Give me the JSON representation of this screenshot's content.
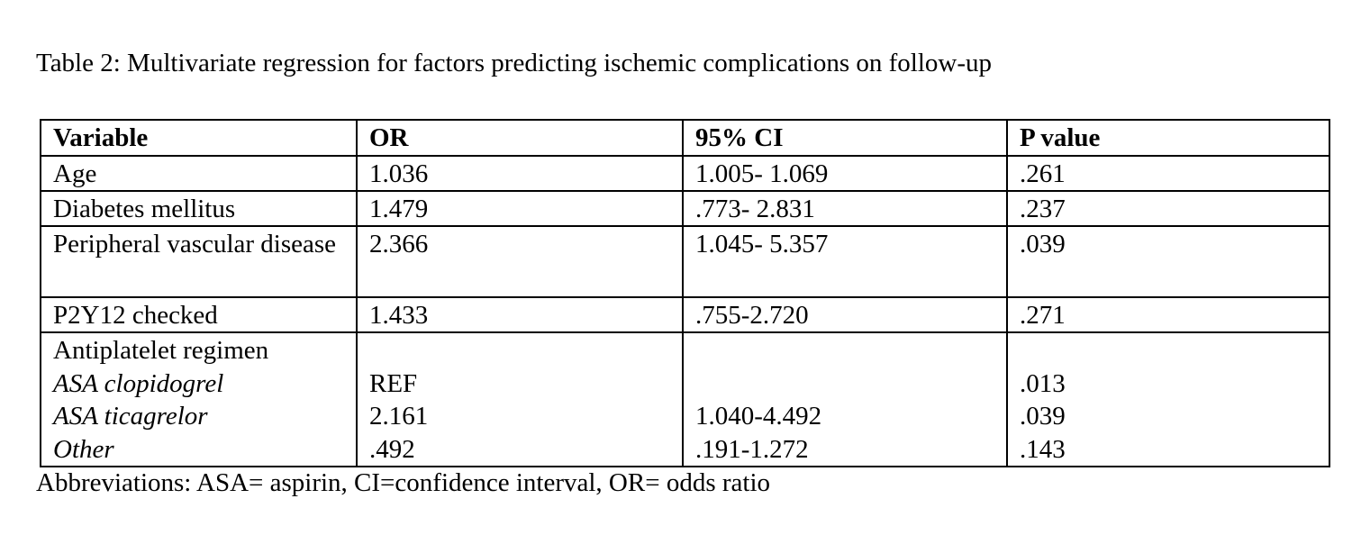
{
  "page": {
    "title": "Table 2: Multivariate regression for factors predicting ischemic complications on follow-up",
    "footnote": "Abbreviations: ASA= aspirin, CI=confidence interval, OR= odds ratio"
  },
  "table": {
    "headers": [
      "Variable",
      "OR",
      "95% CI",
      "P value"
    ],
    "rows": [
      [
        "Age",
        "1.036",
        "1.005- 1.069",
        ".261"
      ],
      [
        "Diabetes mellitus",
        "1.479",
        ".773- 2.831",
        ".237"
      ],
      [
        "Peripheral vascular disease",
        "2.366",
        "1.045- 5.357",
        ".039"
      ],
      [
        "P2Y12 checked",
        "1.433",
        ".755-2.720",
        ".271"
      ]
    ],
    "group": {
      "variable": [
        "Antiplatelet regimen",
        "ASA clopidogrel",
        "ASA ticagrelor",
        "Other"
      ],
      "or": [
        "",
        "REF",
        "2.161",
        ".492"
      ],
      "ci": [
        "",
        "",
        "1.040-4.492",
        ".191-1.272"
      ],
      "p": [
        "",
        ".013",
        ".039",
        ".143"
      ]
    }
  }
}
